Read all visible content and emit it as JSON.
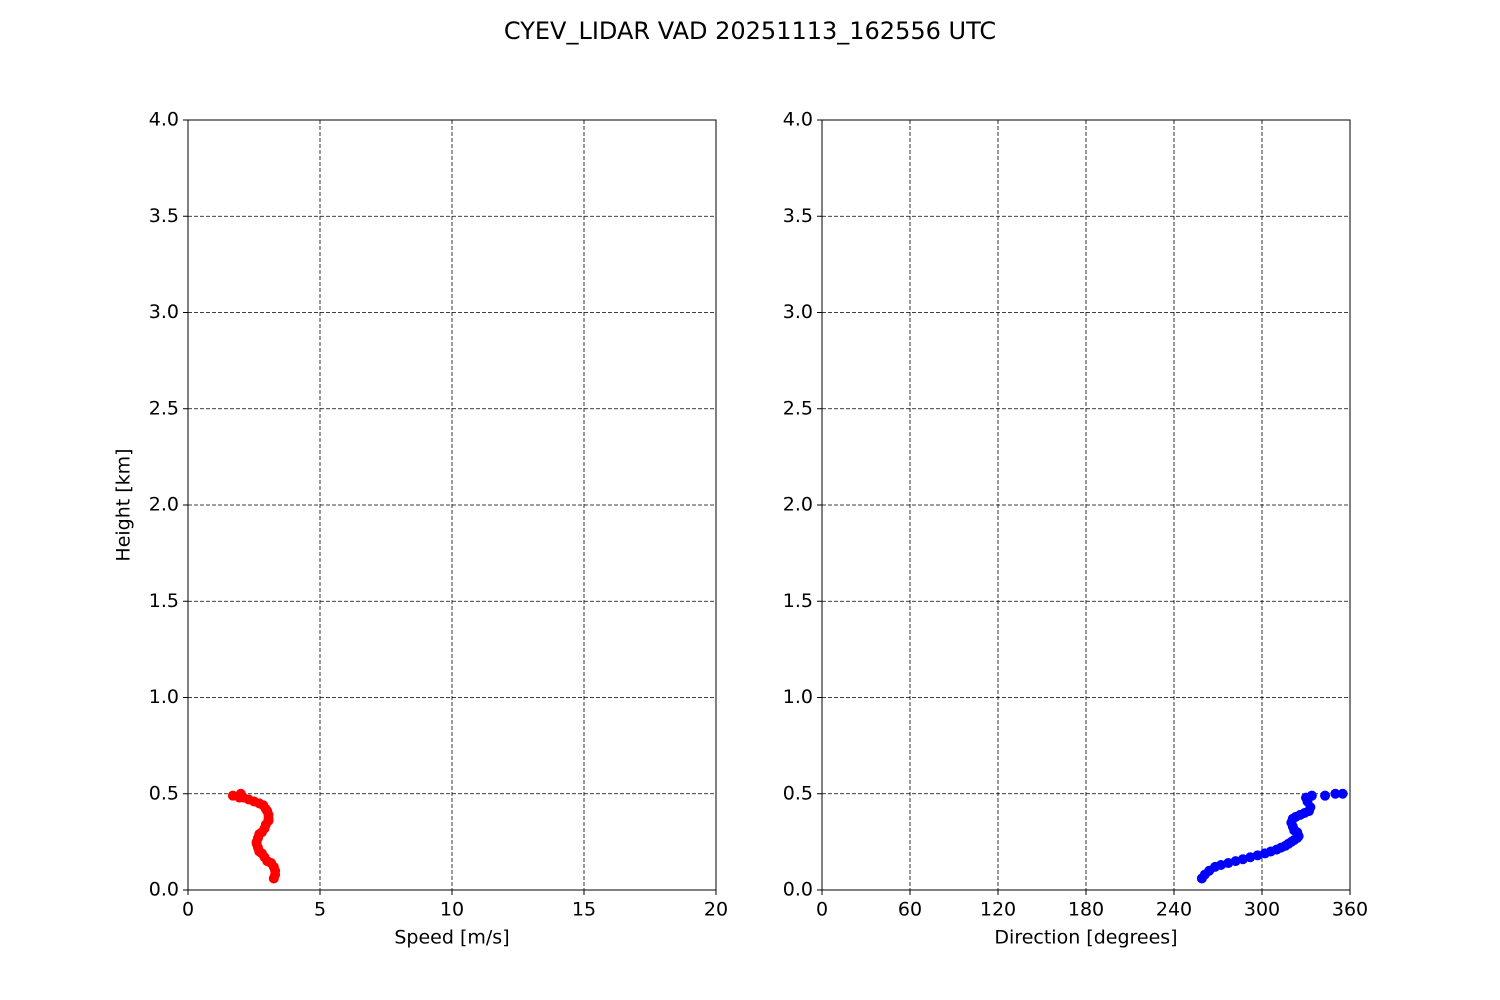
{
  "title": "CYEV_LIDAR VAD 20251113_162556 UTC",
  "chart_data": [
    {
      "type": "scatter",
      "x_label": "Speed [m/s]",
      "y_label": "Height [km]",
      "color": "#ff0000",
      "grid": true,
      "xlim": [
        0,
        20
      ],
      "xticks": [
        0,
        5,
        10,
        15,
        20
      ],
      "ylim": [
        0,
        4
      ],
      "yticks": [
        {
          "value": 0,
          "label": "0.0"
        },
        {
          "value": 0.5,
          "label": "0.5"
        },
        {
          "value": 1,
          "label": "1.0"
        },
        {
          "value": 1.5,
          "label": "1.5"
        },
        {
          "value": 2,
          "label": "2.0"
        },
        {
          "value": 2.5,
          "label": "2.5"
        },
        {
          "value": 3,
          "label": "3.0"
        },
        {
          "value": 3.5,
          "label": "3.5"
        },
        {
          "value": 4,
          "label": "4.0"
        }
      ],
      "x": [
        3.25,
        3.3,
        3.3,
        3.25,
        3.15,
        3.0,
        2.9,
        2.8,
        2.7,
        2.65,
        2.6,
        2.6,
        2.65,
        2.7,
        2.8,
        2.9,
        2.95,
        3.05,
        3.05,
        3.05,
        3.0,
        2.95,
        2.85,
        2.7,
        2.5,
        2.3,
        2.1,
        1.95,
        1.7,
        2.0
      ],
      "values": [
        0.06,
        0.08,
        0.1,
        0.12,
        0.14,
        0.15,
        0.17,
        0.19,
        0.2,
        0.22,
        0.24,
        0.25,
        0.27,
        0.29,
        0.3,
        0.32,
        0.34,
        0.36,
        0.37,
        0.39,
        0.41,
        0.42,
        0.44,
        0.45,
        0.46,
        0.47,
        0.48,
        0.48,
        0.49,
        0.5
      ]
    },
    {
      "type": "scatter",
      "x_label": "Direction [degrees]",
      "color": "#0000ff",
      "grid": true,
      "xlim": [
        0,
        360
      ],
      "xticks": [
        0,
        60,
        120,
        180,
        240,
        300,
        360
      ],
      "ylim": [
        0,
        4
      ],
      "yticks": [
        {
          "value": 0,
          "label": "0.0"
        },
        {
          "value": 0.5,
          "label": "0.5"
        },
        {
          "value": 1,
          "label": "1.0"
        },
        {
          "value": 1.5,
          "label": "1.5"
        },
        {
          "value": 2,
          "label": "2.0"
        },
        {
          "value": 2.5,
          "label": "2.5"
        },
        {
          "value": 3,
          "label": "3.0"
        },
        {
          "value": 3.5,
          "label": "3.5"
        },
        {
          "value": 4,
          "label": "4.0"
        }
      ],
      "x": [
        259,
        261,
        264,
        268,
        272,
        277,
        282,
        287,
        292,
        297,
        302,
        306,
        310,
        313,
        316,
        318,
        320,
        322,
        324,
        325,
        324,
        322,
        321,
        320,
        321,
        323,
        326,
        329,
        332,
        333,
        331,
        330,
        334,
        343,
        350,
        355
      ],
      "values": [
        0.06,
        0.08,
        0.1,
        0.12,
        0.13,
        0.14,
        0.15,
        0.16,
        0.17,
        0.18,
        0.19,
        0.2,
        0.21,
        0.22,
        0.23,
        0.24,
        0.25,
        0.26,
        0.27,
        0.28,
        0.3,
        0.31,
        0.33,
        0.35,
        0.37,
        0.38,
        0.39,
        0.4,
        0.41,
        0.43,
        0.46,
        0.48,
        0.49,
        0.49,
        0.5,
        0.5
      ]
    }
  ]
}
